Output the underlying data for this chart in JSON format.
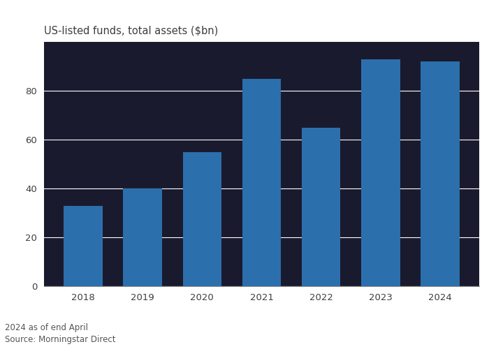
{
  "title": "US-listed funds, total assets ($bn)",
  "categories": [
    "2018",
    "2019",
    "2020",
    "2021",
    "2022",
    "2023",
    "2024"
  ],
  "values": [
    33,
    40,
    55,
    85,
    65,
    93,
    92
  ],
  "bar_color": "#2c6fad",
  "ylim": [
    0,
    100
  ],
  "yticks": [
    0,
    20,
    40,
    60,
    80
  ],
  "figure_bg": "#ffffff",
  "plot_bg": "#1a1a2e",
  "grid_color": "#ffffff",
  "title_color": "#3d3d3d",
  "tick_color": "#3d3d3d",
  "footnote1": "2024 as of end April",
  "footnote2": "Source: Morningstar Direct",
  "title_fontsize": 10.5,
  "tick_fontsize": 9.5,
  "footnote_fontsize": 8.5
}
